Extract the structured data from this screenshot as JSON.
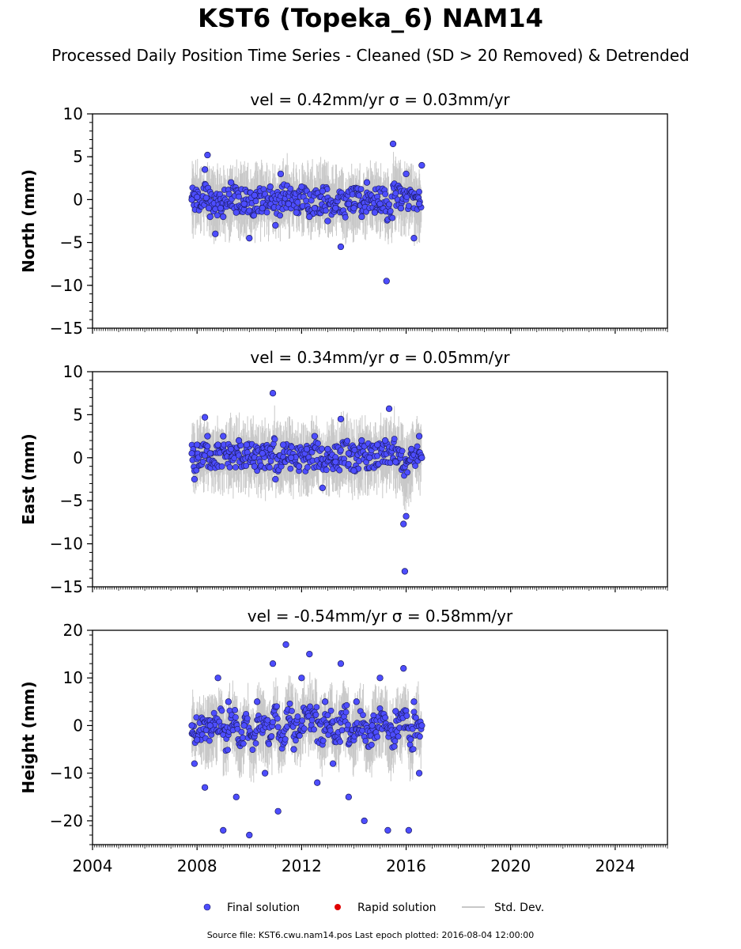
{
  "title": "KST6 (Topeka_6) NAM14",
  "subtitle": "Processed Daily Position Time Series - Cleaned (SD > 20 Removed) & Detrended",
  "footer": "Source file: KST6.cwu.nam14.pos  Last epoch plotted: 2016-08-04 12:00:00",
  "colors": {
    "final_solution": "#4d4dff",
    "rapid_solution": "#e00000",
    "std_dev": "#c8c8c8"
  },
  "chart_data": [
    {
      "type": "scatter",
      "title": "vel = 0.42mm/yr   σ = 0.03mm/yr",
      "ylabel": "North (mm)",
      "xlim": [
        2004,
        2026
      ],
      "ylim": [
        -15,
        10
      ],
      "yticks": [
        10,
        5,
        0,
        -5,
        -10,
        -15
      ],
      "ytick_labels": [
        "10",
        "5",
        "0",
        "−5",
        "−10",
        "−15"
      ],
      "xticks": [
        2004,
        2008,
        2012,
        2016,
        2020,
        2024
      ],
      "series": [
        {
          "name": "Final solution",
          "x": [
            2007.8,
            2007.9,
            2008.0,
            2008.3,
            2008.35,
            2008.4,
            2008.45,
            2008.5,
            2008.7,
            2008.9,
            2009.0,
            2009.3,
            2009.5,
            2009.8,
            2010.0,
            2010.2,
            2010.5,
            2010.8,
            2011.0,
            2011.2,
            2011.5,
            2011.8,
            2012.0,
            2012.3,
            2012.5,
            2012.8,
            2013.0,
            2013.3,
            2013.5,
            2013.8,
            2014.0,
            2014.3,
            2014.5,
            2014.8,
            2015.0,
            2015.25,
            2015.5,
            2015.8,
            2016.0,
            2016.3,
            2016.5,
            2016.6
          ],
          "y": [
            0.0,
            0.6,
            0.3,
            3.5,
            0.2,
            5.2,
            -1.0,
            -2.0,
            -4.0,
            -1.0,
            -2.0,
            2.0,
            -1.5,
            -0.5,
            -4.5,
            0.5,
            -1.0,
            1.5,
            -3.0,
            3.0,
            -0.5,
            -1.5,
            1.5,
            -2.0,
            -1.0,
            1.0,
            -2.5,
            -1.0,
            -5.5,
            -0.5,
            -1.0,
            -2.0,
            2.0,
            -1.5,
            -0.5,
            -9.5,
            6.5,
            -1.0,
            3.0,
            -4.5,
            -0.5,
            4.0
          ]
        }
      ]
    },
    {
      "type": "scatter",
      "title": "vel = 0.34mm/yr   σ = 0.05mm/yr",
      "ylabel": "East (mm)",
      "xlim": [
        2004,
        2026
      ],
      "ylim": [
        -15,
        10
      ],
      "yticks": [
        10,
        5,
        0,
        -5,
        -10,
        -15
      ],
      "ytick_labels": [
        "10",
        "5",
        "0",
        "−5",
        "−10",
        "−15"
      ],
      "xticks": [
        2004,
        2008,
        2012,
        2016,
        2020,
        2024
      ],
      "series": [
        {
          "name": "Final solution",
          "x": [
            2007.8,
            2007.9,
            2008.0,
            2008.3,
            2008.4,
            2008.5,
            2008.8,
            2009.0,
            2009.3,
            2009.6,
            2009.9,
            2010.2,
            2010.5,
            2010.8,
            2010.9,
            2011.0,
            2011.3,
            2011.6,
            2011.9,
            2012.2,
            2012.5,
            2012.8,
            2013.0,
            2013.3,
            2013.5,
            2013.8,
            2014.0,
            2014.3,
            2014.6,
            2014.9,
            2015.2,
            2015.35,
            2015.6,
            2015.9,
            2015.95,
            2016.0,
            2016.2,
            2016.5,
            2016.6
          ],
          "y": [
            0.5,
            -2.5,
            1.5,
            4.7,
            2.5,
            0.5,
            1.5,
            2.5,
            1.0,
            2.0,
            1.5,
            -1.0,
            0.5,
            1.0,
            7.5,
            -2.5,
            1.5,
            0.0,
            -1.0,
            1.0,
            2.5,
            -3.5,
            1.0,
            -0.5,
            4.5,
            0.5,
            -1.5,
            2.0,
            0.0,
            1.5,
            2.0,
            5.7,
            -0.5,
            -7.7,
            -13.2,
            -6.8,
            1.0,
            2.5,
            0.0
          ]
        }
      ]
    },
    {
      "type": "scatter",
      "title": "vel = -0.54mm/yr   σ = 0.58mm/yr",
      "ylabel": "Height (mm)",
      "xlim": [
        2004,
        2026
      ],
      "ylim": [
        -25,
        20
      ],
      "yticks": [
        20,
        10,
        0,
        -10,
        -20
      ],
      "ytick_labels": [
        "20",
        "10",
        "0",
        "−10",
        "−20"
      ],
      "xticks": [
        2004,
        2008,
        2012,
        2016,
        2020,
        2024
      ],
      "xtick_labels": [
        "2004",
        "2008",
        "2012",
        "2016",
        "2020",
        "2024"
      ],
      "series": [
        {
          "name": "Final solution",
          "x": [
            2007.8,
            2007.9,
            2008.0,
            2008.3,
            2008.5,
            2008.8,
            2009.0,
            2009.2,
            2009.5,
            2009.8,
            2010.0,
            2010.3,
            2010.6,
            2010.9,
            2011.1,
            2011.4,
            2011.7,
            2012.0,
            2012.3,
            2012.6,
            2012.9,
            2013.2,
            2013.5,
            2013.8,
            2014.1,
            2014.4,
            2014.7,
            2015.0,
            2015.3,
            2015.6,
            2015.9,
            2016.1,
            2016.3,
            2016.5,
            2016.6
          ],
          "y": [
            0.0,
            -8.0,
            -3.0,
            -13.0,
            0.0,
            10.0,
            -22.0,
            5.0,
            -15.0,
            0.0,
            -23.0,
            5.0,
            -10.0,
            13.0,
            -18.0,
            17.0,
            -5.0,
            10.0,
            15.0,
            -12.0,
            5.0,
            -8.0,
            13.0,
            -15.0,
            5.0,
            -20.0,
            0.0,
            10.0,
            -22.0,
            3.0,
            12.0,
            -22.0,
            5.0,
            -10.0,
            0.0
          ]
        }
      ]
    }
  ],
  "legend": {
    "items": [
      "Final solution",
      "Rapid solution",
      "Std. Dev."
    ],
    "placement": "bottom-center"
  }
}
